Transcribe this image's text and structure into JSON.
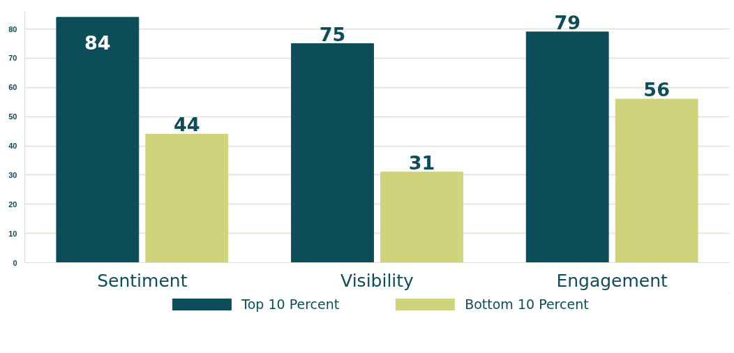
{
  "chart_data": {
    "type": "bar",
    "categories": [
      "Sentiment",
      "Visibility",
      "Engagement"
    ],
    "series": [
      {
        "name": "Top 10 Percent",
        "color": "#0d4d5a",
        "values": [
          84,
          75,
          79
        ]
      },
      {
        "name": "Bottom 10 Percent",
        "color": "#cfd37c",
        "values": [
          44,
          31,
          56
        ]
      }
    ],
    "ylim": [
      0,
      86
    ],
    "yticks": [
      0,
      10,
      20,
      30,
      40,
      50,
      60,
      70,
      80
    ],
    "grid": "y",
    "legend": "bottom",
    "data_labels": true
  }
}
